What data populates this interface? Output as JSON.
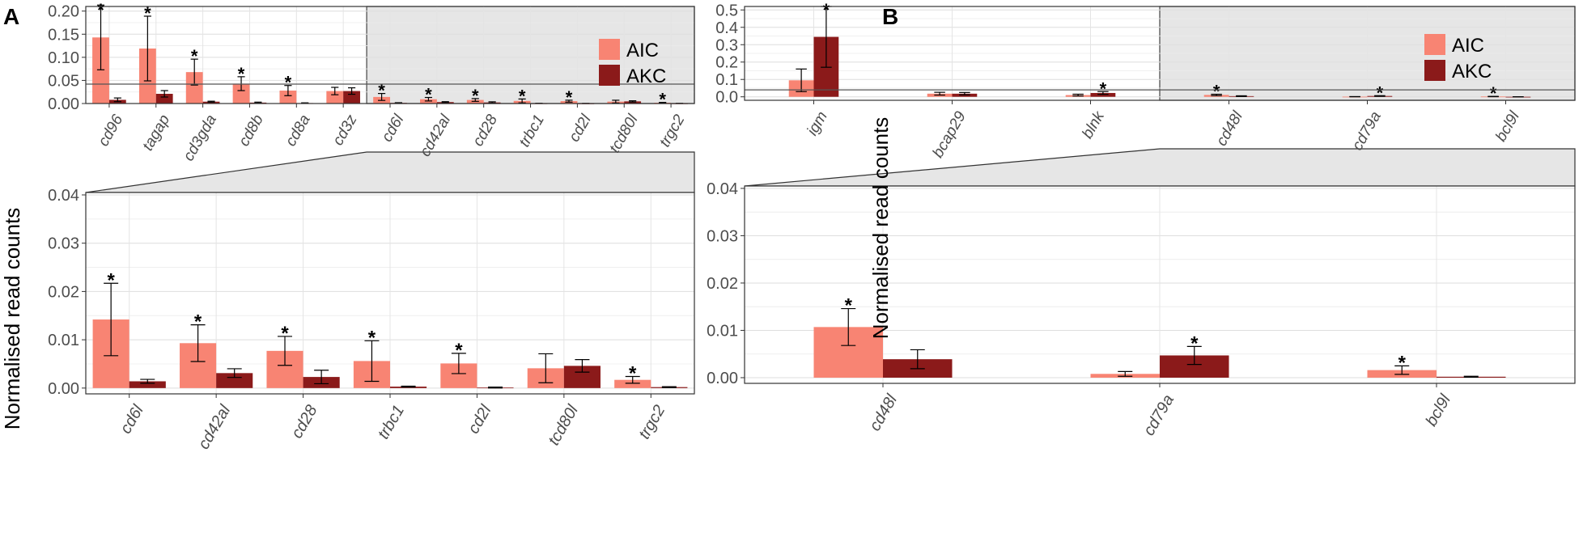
{
  "colors": {
    "AIC": "#f88473",
    "AKC": "#8b1a1a",
    "panel_bg": "#ffffff",
    "zoom_bg": "#e6e6e6",
    "grid": "#ebebeb",
    "axis": "#555555"
  },
  "shared": {
    "ylabel": "Normalised read counts",
    "legend": [
      "AIC",
      "AKC"
    ],
    "sig_marker": "*"
  },
  "chart_data": [
    {
      "id": "A-top",
      "panel_label": "A",
      "type": "bar",
      "categories": [
        "cd96",
        "tagap",
        "cd3gda",
        "cd8b",
        "cd8a",
        "cd3z",
        "cd6l",
        "cd42al",
        "cd28",
        "trbc1",
        "cd2l",
        "tcd80l",
        "trgc2"
      ],
      "series": [
        {
          "name": "AIC",
          "values": [
            0.143,
            0.119,
            0.068,
            0.043,
            0.028,
            0.027,
            0.0142,
            0.0093,
            0.0077,
            0.0056,
            0.0051,
            0.0041,
            0.0017
          ],
          "err": [
            0.07,
            0.07,
            0.028,
            0.015,
            0.011,
            0.008,
            0.0075,
            0.0038,
            0.003,
            0.0042,
            0.0021,
            0.003,
            0.0007
          ]
        },
        {
          "name": "AKC",
          "values": [
            0.008,
            0.021,
            0.004,
            0.002,
            0.001,
            0.027,
            0.0014,
            0.0031,
            0.0023,
            0.0003,
            0.0001,
            0.0046,
            0.0002
          ],
          "err": [
            0.004,
            0.007,
            0.001,
            0.001,
            0.0005,
            0.007,
            0.0004,
            0.0009,
            0.0014,
            0.0001,
            0.0001,
            0.0013,
            0.0001
          ]
        }
      ],
      "sig": [
        true,
        true,
        true,
        true,
        true,
        false,
        true,
        true,
        true,
        true,
        true,
        false,
        true
      ],
      "ylim": [
        0,
        0.21
      ],
      "yticks": [
        "0.00",
        "0.05",
        "0.10",
        "0.15",
        "0.20"
      ],
      "ytick_values": [
        0,
        0.05,
        0.1,
        0.15,
        0.2
      ],
      "threshold": 0.042,
      "zoom_from_index": 6,
      "legend_position": "top-right"
    },
    {
      "id": "A-zoom",
      "type": "bar",
      "ylabel": "Normalised read counts",
      "categories": [
        "cd6l",
        "cd42al",
        "cd28",
        "trbc1",
        "cd2l",
        "tcd80l",
        "trgc2"
      ],
      "series": [
        {
          "name": "AIC",
          "values": [
            0.0142,
            0.0093,
            0.0077,
            0.0056,
            0.0051,
            0.0041,
            0.0017
          ],
          "err": [
            0.0075,
            0.0038,
            0.003,
            0.0042,
            0.0021,
            0.003,
            0.0007
          ]
        },
        {
          "name": "AKC",
          "values": [
            0.0014,
            0.0031,
            0.0023,
            0.0003,
            0.0001,
            0.0046,
            0.0002
          ],
          "err": [
            0.0004,
            0.0009,
            0.0014,
            0.0001,
            0.0001,
            0.0013,
            0.0001
          ]
        }
      ],
      "sig": [
        true,
        true,
        true,
        true,
        true,
        false,
        true
      ],
      "ylim": [
        -0.0012,
        0.0405
      ],
      "yticks": [
        "0.00",
        "0.01",
        "0.02",
        "0.03",
        "0.04"
      ],
      "ytick_values": [
        0,
        0.01,
        0.02,
        0.03,
        0.04
      ]
    },
    {
      "id": "B-top",
      "panel_label": "B",
      "type": "bar",
      "categories": [
        "igm",
        "bcap29",
        "blnk",
        "cd48l",
        "cd79a",
        "bcl9l"
      ],
      "series": [
        {
          "name": "AIC",
          "values": [
            0.095,
            0.018,
            0.01,
            0.0107,
            0.0008,
            0.0016
          ],
          "err": [
            0.065,
            0.008,
            0.005,
            0.004,
            0.0005,
            0.0009
          ]
        },
        {
          "name": "AKC",
          "values": [
            0.345,
            0.018,
            0.022,
            0.0039,
            0.0047,
            0.0002
          ],
          "err": [
            0.175,
            0.007,
            0.008,
            0.002,
            0.0019,
            0.0001
          ]
        }
      ],
      "sig": [
        "AKC",
        "none",
        "AKC",
        "AIC",
        "AKC",
        "AIC"
      ],
      "ylim": [
        -0.02,
        0.52
      ],
      "yticks": [
        "0.0",
        "0.1",
        "0.2",
        "0.3",
        "0.4",
        "0.5"
      ],
      "ytick_values": [
        0,
        0.1,
        0.2,
        0.3,
        0.4,
        0.5
      ],
      "threshold": 0.04,
      "zoom_from_index": 3,
      "legend_position": "top-right"
    },
    {
      "id": "B-zoom",
      "type": "bar",
      "ylabel": "Normalised read counts",
      "categories": [
        "cd48l",
        "cd79a",
        "bcl9l"
      ],
      "series": [
        {
          "name": "AIC",
          "values": [
            0.0107,
            0.0008,
            0.0016
          ],
          "err": [
            0.0039,
            0.0005,
            0.0009
          ]
        },
        {
          "name": "AKC",
          "values": [
            0.0039,
            0.0047,
            0.0002
          ],
          "err": [
            0.002,
            0.0019,
            0.0001
          ]
        }
      ],
      "sig": [
        "AIC",
        "AKC",
        "AIC"
      ],
      "ylim": [
        -0.0012,
        0.0405
      ],
      "yticks": [
        "0.00",
        "0.01",
        "0.02",
        "0.03",
        "0.04"
      ],
      "ytick_values": [
        0,
        0.01,
        0.02,
        0.03,
        0.04
      ]
    }
  ]
}
